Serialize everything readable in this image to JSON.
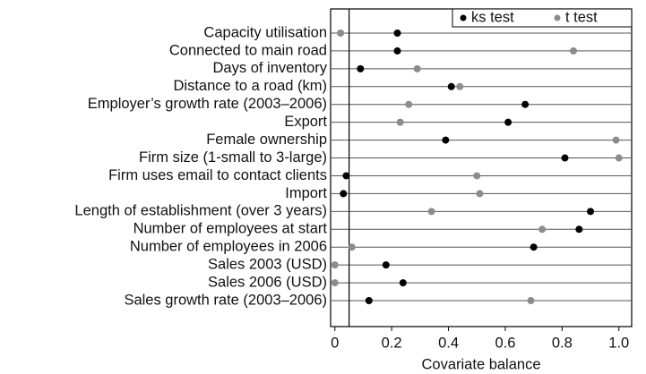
{
  "chart_data": {
    "type": "dot",
    "xlabel": "Covariate balance",
    "categories": [
      "Capacity utilisation",
      "Connected to main road",
      "Days of inventory",
      "Distance to a road (km)",
      "Employer’s growth rate (2003–2006)",
      "Export",
      "Female ownership",
      "Firm size (1-small to 3-large)",
      "Firm uses email to contact clients",
      "Import",
      "Length of establishment (over 3 years)",
      "Number of employees at start",
      "Number of employees in 2006",
      "Sales 2003 (USD)",
      "Sales 2006 (USD)",
      "Sales growth rate (2003–2006)"
    ],
    "series": [
      {
        "name": "t test",
        "color": "#8c8c8c",
        "values": [
          0.02,
          0.84,
          0.29,
          0.44,
          0.26,
          0.23,
          0.99,
          1.0,
          0.5,
          0.51,
          0.34,
          0.73,
          0.06,
          0.0,
          0.0,
          0.69
        ]
      },
      {
        "name": "ks test",
        "color": "#000000",
        "values": [
          0.22,
          0.22,
          0.09,
          0.41,
          0.67,
          0.61,
          0.39,
          0.81,
          0.04,
          0.03,
          0.9,
          0.86,
          0.7,
          0.18,
          0.24,
          0.12
        ]
      }
    ],
    "reference_line": 0.05,
    "xlim": [
      -0.015,
      1.045
    ],
    "xticks": [
      0,
      0.2,
      0.4,
      0.6,
      0.8,
      {
        "value": 1,
        "label": "1.0"
      }
    ],
    "legend": "top-right"
  }
}
